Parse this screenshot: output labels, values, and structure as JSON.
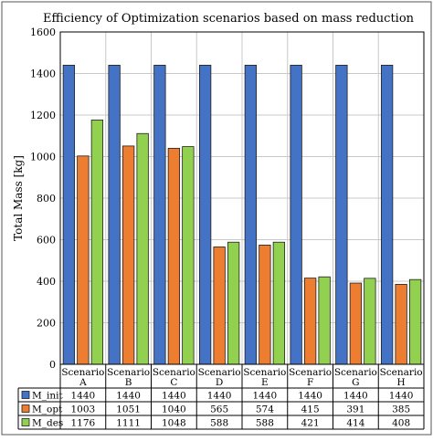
{
  "chart_data": {
    "type": "bar",
    "title": "Efficiency of Optimization scenarios based on mass reduction",
    "ylabel": "Total Mass [kg]",
    "xlabel": "",
    "ylim": [
      0,
      1600
    ],
    "yticks": [
      0,
      200,
      400,
      600,
      800,
      1000,
      1200,
      1400,
      1600
    ],
    "grid": true,
    "legend": "data-table",
    "categories": [
      {
        "line1": "Scenario",
        "line2": "A"
      },
      {
        "line1": "Scenario",
        "line2": "B"
      },
      {
        "line1": "Scenario",
        "line2": "C"
      },
      {
        "line1": "Scenario",
        "line2": "D"
      },
      {
        "line1": "Scenario",
        "line2": "E"
      },
      {
        "line1": "Scenario",
        "line2": "F"
      },
      {
        "line1": "Scenario",
        "line2": "G"
      },
      {
        "line1": "Scenario",
        "line2": "H"
      }
    ],
    "series": [
      {
        "name": "M_init",
        "color": "#4472C4",
        "values": [
          1440,
          1440,
          1440,
          1440,
          1440,
          1440,
          1440,
          1440
        ]
      },
      {
        "name": "M_opt",
        "color": "#ED7D31",
        "values": [
          1003,
          1051,
          1040,
          565,
          574,
          415,
          391,
          385
        ]
      },
      {
        "name": "M_des",
        "color": "#92D050",
        "values": [
          1176,
          1111,
          1048,
          588,
          588,
          421,
          414,
          408
        ]
      }
    ]
  }
}
